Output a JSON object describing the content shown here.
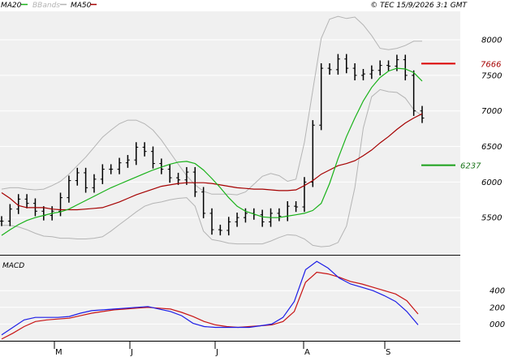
{
  "header": {
    "legend": [
      {
        "label": "MA20",
        "color": "#19b219"
      },
      {
        "label": "BBands",
        "color": "#b4b4b4"
      },
      {
        "label": "MA50",
        "color": "#a50000"
      }
    ],
    "copyright": "© TEC 15/9/2026 3:1 GMT"
  },
  "colors": {
    "background": "#f0f0f0",
    "grid": "#ffffff",
    "price_bars": "#000000",
    "ma20": "#19b219",
    "ma50": "#a50000",
    "bbands": "#b4b4b4",
    "macd": "#1e1ee6",
    "signal": "#c81414",
    "resistance": "#dc0000",
    "support": "#19a019"
  },
  "chart_data": [
    {
      "type": "line",
      "panel": "price",
      "ylim": [
        5000,
        8400
      ],
      "yticks": [
        "8000",
        "7500",
        "7000",
        "6500",
        "6000",
        "5500"
      ],
      "ytick_values": [
        8000,
        7500,
        7000,
        6500,
        6000,
        5500
      ],
      "levels": [
        {
          "label": "7666",
          "value": 7666,
          "kind": "resistance"
        },
        {
          "label": "6237",
          "value": 6237,
          "kind": "support"
        }
      ],
      "series": [
        {
          "name": "MA20",
          "values": [
            5250,
            5330,
            5400,
            5460,
            5500,
            5530,
            5560,
            5580,
            5620,
            5680,
            5740,
            5800,
            5860,
            5920,
            5970,
            6020,
            6070,
            6120,
            6170,
            6210,
            6250,
            6280,
            6290,
            6260,
            6170,
            6050,
            5920,
            5780,
            5660,
            5590,
            5550,
            5510,
            5500,
            5500,
            5520,
            5540,
            5560,
            5600,
            5700,
            5980,
            6330,
            6640,
            6900,
            7140,
            7330,
            7470,
            7560,
            7600,
            7590,
            7540,
            7420
          ]
        },
        {
          "name": "MA50",
          "values": [
            5850,
            5770,
            5670,
            5640,
            5640,
            5640,
            5620,
            5610,
            5610,
            5610,
            5620,
            5630,
            5640,
            5680,
            5720,
            5770,
            5820,
            5860,
            5900,
            5940,
            5960,
            5980,
            5990,
            5990,
            5990,
            5980,
            5960,
            5940,
            5920,
            5910,
            5900,
            5900,
            5890,
            5880,
            5880,
            5890,
            5950,
            6020,
            6110,
            6170,
            6230,
            6260,
            6300,
            6370,
            6450,
            6550,
            6640,
            6740,
            6830,
            6900,
            6960
          ]
        },
        {
          "name": "BB upper",
          "values": [
            5900,
            5920,
            5920,
            5900,
            5890,
            5900,
            5950,
            6010,
            6110,
            6230,
            6350,
            6490,
            6630,
            6730,
            6820,
            6870,
            6870,
            6820,
            6730,
            6590,
            6420,
            6250,
            6090,
            5960,
            5870,
            5830,
            5830,
            5830,
            5820,
            5860,
            5970,
            6080,
            6120,
            6090,
            6010,
            6040,
            6560,
            7290,
            8020,
            8290,
            8330,
            8300,
            8320,
            8210,
            8060,
            7880,
            7860,
            7880,
            7920,
            7980,
            7980
          ]
        },
        {
          "name": "BB lower",
          "values": [
            5390,
            5390,
            5370,
            5330,
            5280,
            5240,
            5230,
            5210,
            5210,
            5200,
            5200,
            5210,
            5230,
            5310,
            5400,
            5490,
            5580,
            5660,
            5700,
            5720,
            5750,
            5770,
            5780,
            5660,
            5310,
            5190,
            5170,
            5140,
            5130,
            5130,
            5130,
            5130,
            5170,
            5220,
            5260,
            5250,
            5200,
            5110,
            5090,
            5100,
            5150,
            5380,
            5920,
            6760,
            7200,
            7300,
            7270,
            7260,
            7180,
            7020,
            6930
          ]
        }
      ],
      "ohlc_closes": [
        5450,
        5620,
        5760,
        5700,
        5590,
        5530,
        5590,
        5780,
        6020,
        6130,
        5920,
        6040,
        6180,
        6180,
        6270,
        6310,
        6490,
        6430,
        6260,
        6180,
        6060,
        6030,
        6140,
        5860,
        5560,
        5330,
        5320,
        5440,
        5500,
        5560,
        5540,
        5440,
        5560,
        5520,
        5660,
        5650,
        6000,
        6800,
        7600,
        7580,
        7730,
        7600,
        7500,
        7520,
        7570,
        7640,
        7630,
        7720,
        7500,
        7000,
        6900
      ]
    },
    {
      "type": "line",
      "panel": "MACD",
      "title": "MACD",
      "ylim": [
        -200,
        800
      ],
      "yticks": [
        "400",
        "200",
        "000"
      ],
      "ytick_values": [
        400,
        200,
        0
      ],
      "series": [
        {
          "name": "MACD",
          "values": [
            -130,
            -40,
            50,
            80,
            80,
            80,
            90,
            130,
            160,
            170,
            180,
            190,
            200,
            210,
            180,
            150,
            100,
            10,
            -30,
            -40,
            -40,
            -40,
            -40,
            -20,
            0,
            80,
            270,
            650,
            750,
            670,
            550,
            480,
            440,
            400,
            340,
            270,
            150,
            -10
          ]
        },
        {
          "name": "Signal",
          "values": [
            -180,
            -110,
            -30,
            30,
            50,
            60,
            70,
            100,
            130,
            150,
            170,
            180,
            190,
            200,
            190,
            180,
            140,
            90,
            30,
            -10,
            -30,
            -40,
            -30,
            -20,
            -10,
            30,
            150,
            500,
            620,
            600,
            560,
            510,
            480,
            440,
            400,
            360,
            280,
            120
          ]
        }
      ]
    }
  ],
  "x_axis": {
    "labels": [
      "M",
      "J",
      "J",
      "A",
      "S"
    ]
  }
}
